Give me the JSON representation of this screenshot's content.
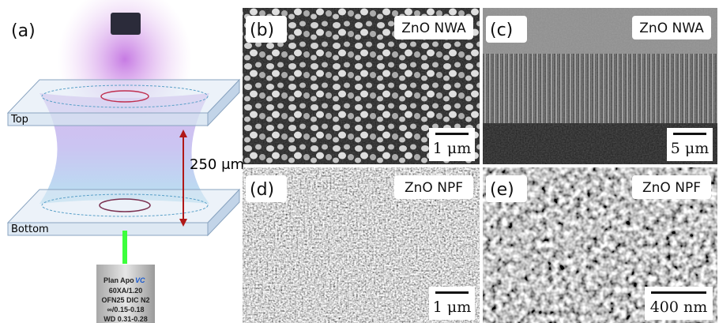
{
  "panel_a": {
    "label": "(a)",
    "top_label": "Top",
    "bottom_label": "Bottom",
    "gap_label": "250 μm",
    "objective": {
      "line1": "Plan Apo",
      "line1_suffix": "VC",
      "line2": "60XA/1.20",
      "line3": "OFN25 DIC N2",
      "line4": "∞/0.15-0.18",
      "line5": "WD 0.31-0.28"
    }
  },
  "panels": [
    {
      "label": "(b)",
      "title": "ZnO NWA",
      "scale_bar": "1 μm"
    },
    {
      "label": "(c)",
      "title": "ZnO NWA",
      "scale_bar": "5 μm"
    },
    {
      "label": "(d)",
      "title": "ZnO NPF",
      "scale_bar": "1 μm"
    },
    {
      "label": "(e)",
      "title": "ZnO NPF",
      "scale_bar": "400 nm"
    }
  ]
}
